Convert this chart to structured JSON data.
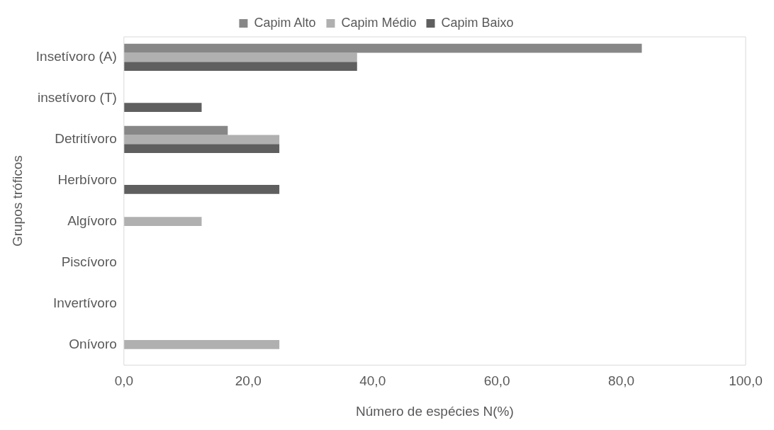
{
  "chart_data": {
    "type": "bar",
    "orientation": "horizontal",
    "xlabel": "Número de espécies N(%)",
    "ylabel": "Grupos tróficos",
    "categories": [
      "Insetívoro (A)",
      "insetívoro (T)",
      "Detritívoro",
      "Herbívoro",
      "Algívoro",
      "Piscívoro",
      "Invertívoro",
      "Onívoro"
    ],
    "series": [
      {
        "name": "Capim Alto",
        "color": "#878787",
        "values": [
          83.3,
          0,
          16.7,
          0,
          0,
          0,
          0,
          0
        ]
      },
      {
        "name": "Capim Médio",
        "color": "#b0b0b0",
        "values": [
          37.5,
          0,
          25,
          0,
          12.5,
          0,
          0,
          25
        ]
      },
      {
        "name": "Capim Baixo",
        "color": "#5f5f5f",
        "values": [
          37.5,
          12.5,
          25,
          25,
          0,
          0,
          0,
          0
        ]
      }
    ],
    "xlim": [
      0,
      100
    ],
    "xticks": [
      {
        "value": 0,
        "label": "0,0"
      },
      {
        "value": 20,
        "label": "20,0"
      },
      {
        "value": 40,
        "label": "40,0"
      },
      {
        "value": 60,
        "label": "60,0"
      },
      {
        "value": 80,
        "label": "80,0"
      },
      {
        "value": 100,
        "label": "100,0"
      }
    ],
    "grid": false,
    "legend": "top"
  }
}
